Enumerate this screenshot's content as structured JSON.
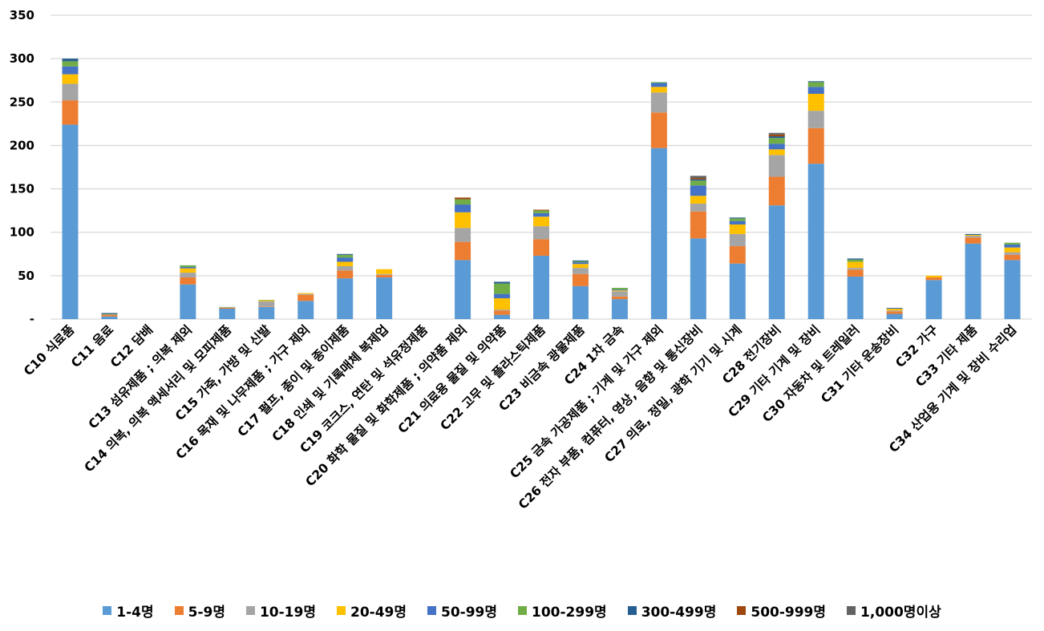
{
  "chart_data": {
    "type": "bar",
    "stacked": true,
    "title": "",
    "xlabel": "",
    "ylabel": "",
    "ylim": [
      0,
      350
    ],
    "yticks": [
      {
        "value": 0,
        "label": "-"
      },
      {
        "value": 50,
        "label": "50"
      },
      {
        "value": 100,
        "label": "100"
      },
      {
        "value": 150,
        "label": "150"
      },
      {
        "value": 200,
        "label": "200"
      },
      {
        "value": 250,
        "label": "250"
      },
      {
        "value": 300,
        "label": "300"
      },
      {
        "value": 350,
        "label": "350"
      }
    ],
    "grid": true,
    "legend_position": "bottom",
    "categories": [
      "C10 식료품",
      "C11 음료",
      "C12 담배",
      "C13 섬유제품 ; 의복 제외",
      "C14 의복, 의복 액세서리 및 모피제품",
      "C15 가죽, 가방 및 신발",
      "C16 목재 및 나무제품 ; 가구 제외",
      "C17 펄프, 종이 및 종이제품",
      "C18 인쇄 및 기록매체 복제업",
      "C19 코크스, 연탄 및 석유정제품",
      "C20 화학 물질 및 화학제품 ; 의약품 제외",
      "C21 의료용 물질 및 의약품",
      "C22 고무 및 플라스틱제품",
      "C23 비금속 광물제품",
      "C24 1차 금속",
      "C25 금속 가공제품 ; 기계 및 가구 제외",
      "C26 전자 부품, 컴퓨터, 영상, 음향 및 통신장비",
      "C27 의료, 정밀, 광학 기기 및 시계",
      "C28 전기장비",
      "C29 기타 기계 및 장비",
      "C30 자동차 및 트레일러",
      "C31 기타 운송장비",
      "C32 가구",
      "C33 기타 제품",
      "C34 산업용 기계 및 장비 수리업"
    ],
    "series": [
      {
        "name": "1-4명",
        "color": "#5b9bd5",
        "values": [
          224,
          3,
          0,
          40,
          12,
          14,
          21,
          47,
          48,
          0,
          68,
          5,
          73,
          38,
          23,
          197,
          93,
          64,
          131,
          179,
          49,
          6,
          45,
          87,
          68
        ]
      },
      {
        "name": "5-9명",
        "color": "#ed7d31",
        "values": [
          28,
          2,
          0,
          8,
          1,
          0.6,
          7,
          9,
          3,
          0,
          21,
          5,
          19,
          14,
          3,
          41,
          31,
          20,
          33,
          41,
          8,
          3,
          3,
          7,
          6
        ]
      },
      {
        "name": "10-19명",
        "color": "#a5a5a5",
        "values": [
          19,
          0.5,
          0,
          5.5,
          0.5,
          6,
          1,
          5,
          1,
          0,
          16,
          1,
          15,
          7,
          6,
          23,
          9,
          14,
          25,
          20,
          2,
          1,
          0,
          2,
          3
        ]
      },
      {
        "name": "20-49명",
        "color": "#ffc000",
        "values": [
          11,
          0,
          0,
          5,
          0,
          1,
          1,
          5,
          5.5,
          0,
          18,
          13,
          11,
          4.5,
          1,
          6.5,
          9,
          11,
          6.5,
          19.5,
          7,
          2,
          2,
          1,
          5.5
        ]
      },
      {
        "name": "50-99명",
        "color": "#4472c4",
        "values": [
          9,
          0,
          0,
          1.5,
          0,
          0,
          0,
          5,
          0,
          0,
          9,
          5,
          4,
          2,
          1,
          4.5,
          12,
          4,
          6.5,
          8,
          0,
          1,
          0,
          0,
          3.5
        ]
      },
      {
        "name": "100-299명",
        "color": "#70ad47",
        "values": [
          6,
          0.5,
          0,
          2,
          0.5,
          0.6,
          0,
          3,
          0,
          0,
          6,
          12,
          3,
          1,
          2,
          1,
          5.5,
          3,
          6.5,
          5.5,
          2.5,
          0,
          0,
          0,
          2
        ]
      },
      {
        "name": "300-499명",
        "color": "#255e91",
        "values": [
          3,
          1,
          0,
          0,
          0,
          0,
          0,
          1,
          0,
          0,
          0,
          2,
          0,
          1,
          0,
          0,
          1.5,
          1,
          2,
          1,
          1.3,
          0,
          0,
          1,
          0
        ]
      },
      {
        "name": "500-999명",
        "color": "#9e480e",
        "values": [
          0,
          0,
          0,
          0,
          0,
          0,
          0,
          0,
          0,
          0,
          2,
          0,
          1,
          0,
          0,
          0,
          1.5,
          0,
          2,
          0,
          0,
          0,
          0,
          0,
          0
        ]
      },
      {
        "name": "1,000명이상",
        "color": "#636363",
        "values": [
          0,
          0,
          0,
          0,
          0,
          0,
          0,
          0,
          0,
          0,
          0,
          0,
          0,
          0,
          0,
          0,
          2.5,
          0,
          2,
          0,
          0,
          0,
          0,
          0,
          0
        ]
      }
    ]
  },
  "legend": [
    {
      "label": "1-4명",
      "color": "#5b9bd5"
    },
    {
      "label": "5-9명",
      "color": "#ed7d31"
    },
    {
      "label": "10-19명",
      "color": "#a5a5a5"
    },
    {
      "label": "20-49명",
      "color": "#ffc000"
    },
    {
      "label": "50-99명",
      "color": "#4472c4"
    },
    {
      "label": "100-299명",
      "color": "#70ad47"
    },
    {
      "label": "300-499명",
      "color": "#255e91"
    },
    {
      "label": "500-999명",
      "color": "#9e480e"
    },
    {
      "label": "1,000명이상",
      "color": "#636363"
    }
  ]
}
